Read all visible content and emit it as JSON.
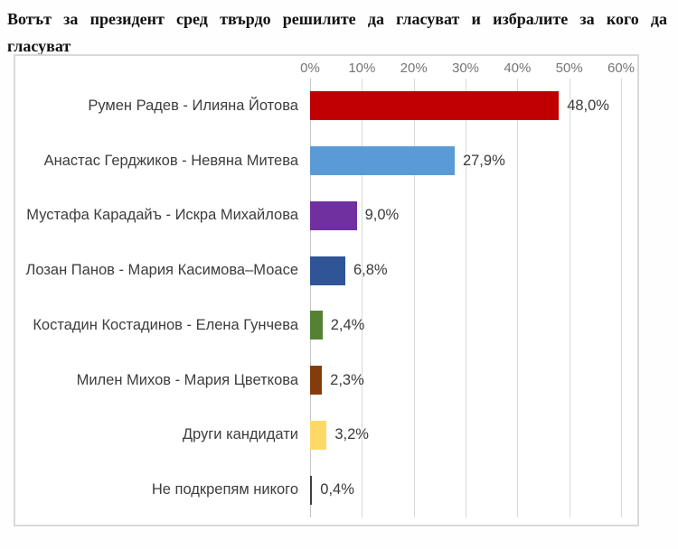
{
  "title": {
    "full": "Вотът за президент сред твърдо решилите да гласуват и избралите за кого да гласуват",
    "line1": "Вотът за президент сред твърдо решилите да гласуват и избралите за кого да",
    "line2": "гласуват"
  },
  "chart_data": {
    "type": "bar",
    "orientation": "horizontal",
    "title": "Вотът за президент сред твърдо решилите да гласуват и избралите за кого да гласуват",
    "categories": [
      "Румен Радев - Илияна Йотова",
      "Анастас Герджиков - Невяна Митева",
      "Мустафа Карадайъ - Искра Михайлова",
      "Лозан Панов - Мария Касимова–Моасе",
      "Костадин Костадинов - Елена Гунчева",
      "Милен Михов - Мария Цветкова",
      "Други кандидати",
      "Не подкрепям никого"
    ],
    "values": [
      48.0,
      27.9,
      9.0,
      6.8,
      2.4,
      2.3,
      3.2,
      0.4
    ],
    "value_labels": [
      "48,0%",
      "27,9%",
      "9,0%",
      "6,8%",
      "2,4%",
      "2,3%",
      "3,2%",
      "0,4%"
    ],
    "bar_colors": [
      "#c00000",
      "#5b9bd5",
      "#7030a0",
      "#2f5597",
      "#548235",
      "#843c0c",
      "#ffd966",
      "#404040"
    ],
    "xlabel": "",
    "ylabel": "",
    "xlim": [
      0,
      60
    ],
    "x_tick_values": [
      0,
      10,
      20,
      30,
      40,
      50,
      60
    ],
    "x_tick_labels": [
      "0%",
      "10%",
      "20%",
      "30%",
      "40%",
      "50%",
      "60%"
    ],
    "grid": true,
    "legend": null
  },
  "colors": {
    "chart_border": "#d9d9d9",
    "gridline": "#d9d9d9",
    "tick_text": "#757575",
    "label_text": "#3d3d3d",
    "title_text": "#111111",
    "background": "#ffffff"
  }
}
